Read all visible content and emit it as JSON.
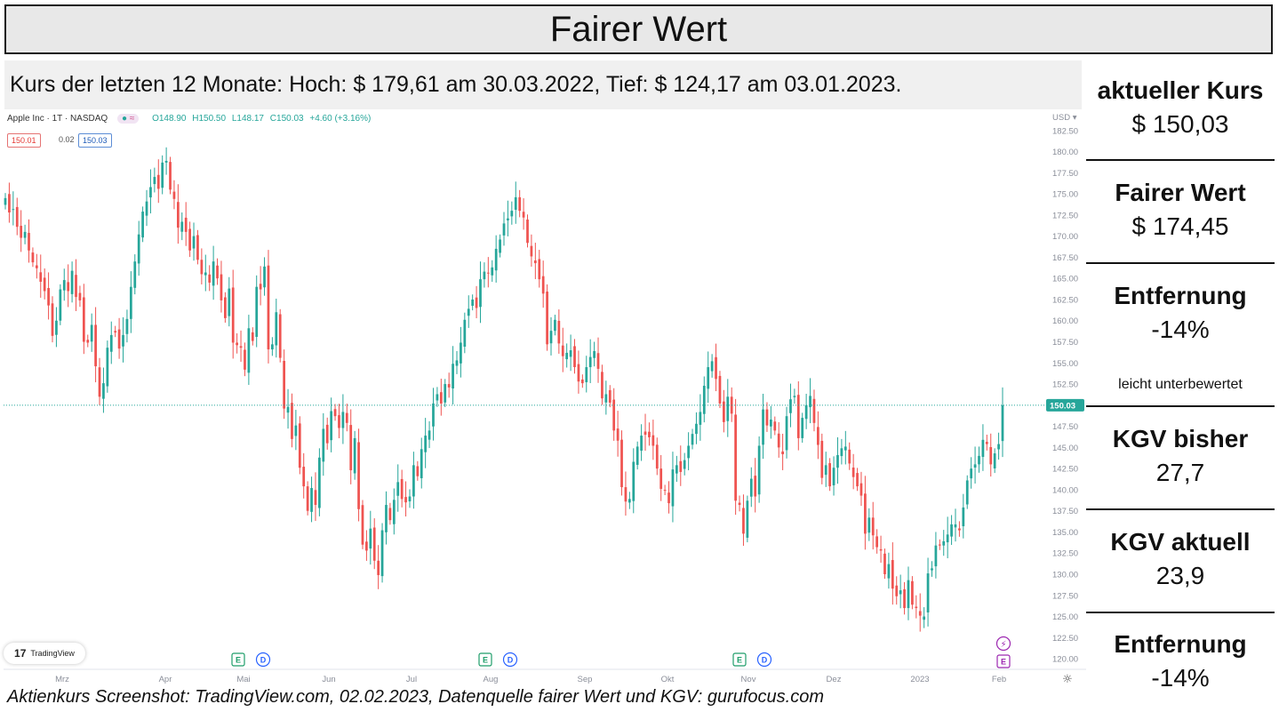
{
  "title": "Fairer Wert",
  "range_text": "Kurs der letzten 12 Monate: Hoch: $ 179,61 am 30.03.2022, Tief: $ 124,17 am 03.01.2023.",
  "source_text": "Aktienkurs Screenshot: TradingView.com, 02.02.2023, Datenquelle fairer Wert und KGV: gurufocus.com",
  "panel": {
    "current_price_label": "aktueller Kurs",
    "current_price_value": "$ 150,03",
    "fair_value_label": "Fairer Wert",
    "fair_value_value": "$ 174,45",
    "distance_label": "Entfernung",
    "distance_value": "-14%",
    "assessment": "leicht unterbewertet",
    "pe_past_label": "KGV bisher",
    "pe_past_value": "27,7",
    "pe_current_label": "KGV aktuell",
    "pe_current_value": "23,9",
    "distance2_label": "Entfernung",
    "distance2_value": "-14%"
  },
  "tradingview": {
    "symbol": "Apple Inc · 1T · NASDAQ",
    "open": "O148.90",
    "high": "H150.50",
    "low": "L148.17",
    "close": "C150.03",
    "change": "+4.60 (+3.16%)",
    "bid": "150.01",
    "spread": "0.02",
    "ask": "150.03",
    "logo_text": "TradingView",
    "currency": "USD"
  },
  "chart_data": {
    "type": "candlestick",
    "ylim": [
      118.75,
      185.0
    ],
    "y_ticks": [
      "120.00",
      "122.50",
      "125.00",
      "127.50",
      "130.00",
      "132.50",
      "135.00",
      "137.50",
      "140.00",
      "142.50",
      "145.00",
      "147.50",
      "150.00",
      "152.50",
      "155.00",
      "157.50",
      "160.00",
      "162.50",
      "165.00",
      "167.50",
      "170.00",
      "172.50",
      "175.00",
      "177.50",
      "180.00",
      "182.50"
    ],
    "x_labels": [
      "Mrz",
      "Apr",
      "Mai",
      "Jun",
      "Jul",
      "Aug",
      "Sep",
      "Okt",
      "Nov",
      "Dez",
      "2023",
      "Feb"
    ],
    "last_price_label": "150.03",
    "close_series": [
      174.5,
      172.8,
      173.2,
      171.1,
      169.8,
      170.5,
      168.3,
      166.9,
      166.2,
      164.6,
      163.5,
      161.8,
      158.2,
      160.0,
      163.7,
      164.8,
      163.5,
      165.9,
      162.8,
      162.4,
      157.5,
      157.4,
      159.5,
      154.6,
      151.0,
      152.6,
      156.8,
      158.3,
      158.6,
      156.7,
      158.3,
      160.2,
      164.0,
      167.0,
      170.2,
      172.9,
      174.1,
      175.8,
      177.0,
      175.6,
      178.7,
      178.9,
      175.5,
      174.4,
      171.0,
      171.7,
      170.5,
      168.3,
      170.0,
      167.2,
      165.5,
      165.7,
      164.5,
      167.0,
      165.0,
      162.4,
      160.3,
      163.8,
      157.4,
      157.1,
      156.8,
      154.2,
      159.1,
      157.6,
      164.0,
      163.7,
      166.4,
      156.6,
      157.2,
      161.0,
      155.6,
      149.6,
      149.8,
      146.0,
      147.6,
      142.6,
      140.4,
      137.5,
      140.2,
      138.2,
      143.8,
      147.2,
      145.5,
      149.3,
      148.7,
      147.3,
      149.2,
      147.9,
      142.3,
      146.1,
      137.7,
      133.5,
      132.8,
      135.4,
      131.6,
      129.9,
      135.2,
      138.2,
      136.4,
      138.8,
      140.9,
      138.9,
      138.5,
      139.2,
      142.9,
      141.6,
      144.8,
      146.4,
      147.0,
      150.2,
      151.3,
      150.2,
      152.5,
      152.1,
      154.9,
      155.3,
      157.4,
      160.1,
      161.4,
      162.5,
      161.5,
      164.9,
      165.8,
      165.6,
      166.3,
      168.5,
      169.6,
      171.5,
      172.1,
      173.0,
      174.6,
      173.0,
      172.2,
      169.2,
      167.6,
      166.8,
      164.9,
      163.2,
      157.2,
      158.8,
      160.1,
      157.3,
      155.8,
      156.2,
      156.5,
      154.5,
      152.8,
      152.6,
      154.5,
      155.7,
      156.4,
      154.3,
      150.8,
      151.3,
      150.3,
      147.0,
      145.8,
      140.3,
      138.6,
      138.9,
      143.3,
      145.1,
      146.4,
      146.5,
      146.2,
      145.2,
      142.5,
      140.1,
      139.9,
      138.4,
      142.4,
      142.9,
      142.1,
      143.5,
      145.2,
      146.6,
      147.8,
      149.2,
      152.3,
      154.5,
      155.2,
      153.1,
      150.2,
      148.0,
      151.0,
      149.0,
      138.7,
      138.2,
      134.8,
      138.7,
      141.3,
      139.2,
      145.2,
      149.5,
      147.6,
      148.3,
      147.0,
      145.0,
      144.2,
      148.7,
      150.7,
      151.1,
      146.1,
      148.5,
      150.0,
      151.1,
      147.9,
      145.3,
      141.4,
      142.9,
      140.4,
      142.6,
      144.1,
      144.9,
      145.1,
      143.1,
      141.5,
      140.4,
      139.3,
      134.8,
      136.7,
      134.6,
      133.2,
      132.8,
      130.0,
      131.2,
      128.3,
      127.4,
      128.1,
      126.0,
      129.3,
      126.4,
      126.0,
      125.1,
      125.0,
      130.1,
      130.7,
      133.4,
      133.4,
      133.9,
      134.7,
      135.9,
      135.9,
      135.2,
      137.9,
      141.1,
      142.5,
      143.0,
      144.0,
      145.9,
      145.4,
      143.0,
      144.3,
      145.4,
      150.0
    ]
  }
}
